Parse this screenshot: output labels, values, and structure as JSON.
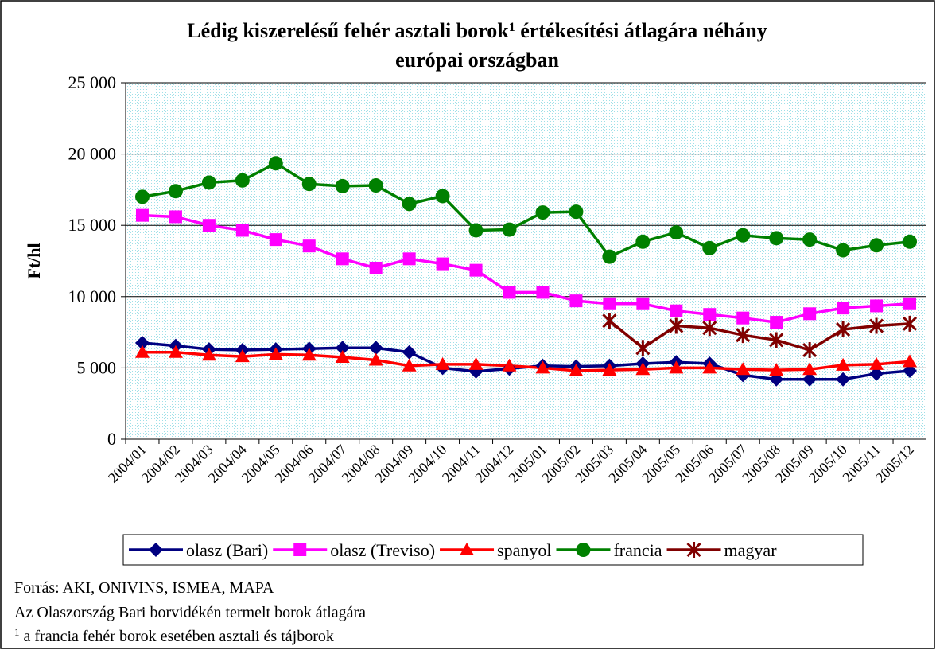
{
  "chart_data": {
    "type": "line",
    "title": {
      "line1": "Lédig kiszerelésű fehér asztali borok",
      "sup": "1",
      "line1_end": " értékesítési átlagára néhány",
      "line2": "európai országban"
    },
    "y_label": "Ft/hl",
    "categories": [
      "2004/01",
      "2004/02",
      "2004/03",
      "2004/04",
      "2004/05",
      "2004/06",
      "2004/07",
      "2004/08",
      "2004/09",
      "2004/10",
      "2004/11",
      "2004/12",
      "2005/01",
      "2005/02",
      "2005/03",
      "2005/04",
      "2005/05",
      "2005/06",
      "2005/07",
      "2005/08",
      "2005/09",
      "2005/10",
      "2005/11",
      "2005/12"
    ],
    "series": [
      {
        "name": "olasz (Bari)",
        "color": "#000080",
        "marker": "diamond",
        "values": [
          6750,
          6550,
          6300,
          6250,
          6300,
          6350,
          6400,
          6400,
          6100,
          5000,
          4750,
          4950,
          5150,
          5100,
          5150,
          5300,
          5400,
          5300,
          4500,
          4200,
          4200,
          4200,
          4600,
          4800
        ]
      },
      {
        "name": "olasz (Treviso)",
        "color": "#ff00ff",
        "marker": "square",
        "values": [
          15700,
          15600,
          15000,
          14650,
          14000,
          13550,
          12650,
          12000,
          12650,
          12300,
          11850,
          10300,
          10300,
          9700,
          9500,
          9500,
          9000,
          8750,
          8500,
          8200,
          8800,
          9200,
          9350,
          9500
        ]
      },
      {
        "name": "spanyol",
        "color": "#ff0000",
        "marker": "triangle",
        "values": [
          6100,
          6100,
          5900,
          5800,
          5950,
          5900,
          5750,
          5550,
          5150,
          5250,
          5250,
          5150,
          5000,
          4800,
          4850,
          4900,
          5000,
          5000,
          4900,
          4850,
          4900,
          5200,
          5250,
          5450
        ]
      },
      {
        "name": "francia",
        "color": "#008000",
        "marker": "circle",
        "values": [
          17000,
          17400,
          18000,
          18150,
          19350,
          17900,
          17750,
          17800,
          16500,
          17050,
          14650,
          14700,
          15900,
          15950,
          12800,
          13850,
          14500,
          13400,
          14300,
          14100,
          14000,
          13250,
          13600,
          13850
        ]
      },
      {
        "name": "magyar",
        "color": "#800000",
        "marker": "star",
        "values": [
          null,
          null,
          null,
          null,
          null,
          null,
          null,
          null,
          null,
          null,
          null,
          null,
          null,
          null,
          8300,
          6400,
          7950,
          7800,
          7300,
          6950,
          6250,
          7700,
          7950,
          8100
        ]
      }
    ],
    "ylim": [
      0,
      25000
    ],
    "yticks": [
      {
        "value": 0,
        "label": "0"
      },
      {
        "value": 5000,
        "label": "5 000"
      },
      {
        "value": 10000,
        "label": "10 000"
      },
      {
        "value": 15000,
        "label": "15 000"
      },
      {
        "value": 20000,
        "label": "20 000"
      },
      {
        "value": 25000,
        "label": "25 000"
      }
    ],
    "grid": true,
    "legend": "bottom",
    "notes": [
      "Forrás: AKI, ONIVINS, ISMEA, MAPA",
      "Az Olaszország Bari borvidékén termelt borok átlagára"
    ],
    "footnote": {
      "sup": "1",
      "text": " a francia fehér borok esetében asztali és tájborok"
    }
  }
}
